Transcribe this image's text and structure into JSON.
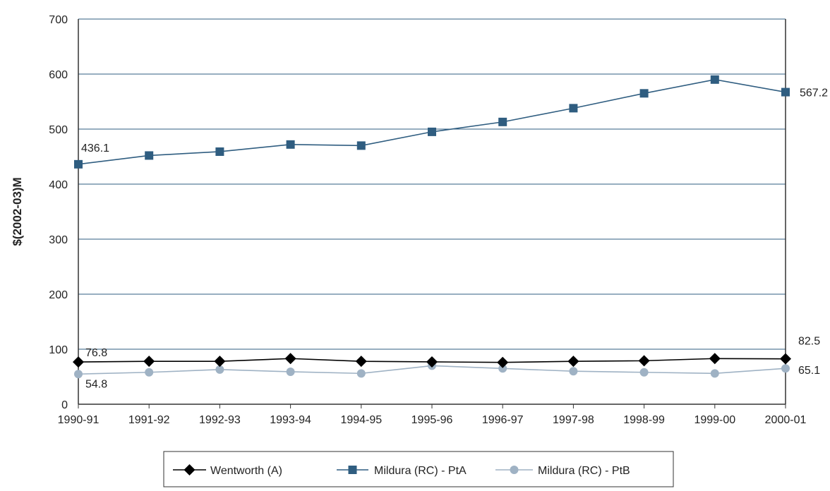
{
  "chart_data": {
    "type": "line",
    "title": "",
    "xlabel": "",
    "ylabel": "$(2002-03)M",
    "ylim": [
      0,
      700
    ],
    "yticks": [
      0,
      100,
      200,
      300,
      400,
      500,
      600,
      700
    ],
    "grid": "horizontal",
    "legend_position": "bottom",
    "categories": [
      "1990-91",
      "1991-92",
      "1992-93",
      "1993-94",
      "1994-95",
      "1995-96",
      "1996-97",
      "1997-98",
      "1998-99",
      "1999-00",
      "2000-01"
    ],
    "series": [
      {
        "name": "Wentworth (A)",
        "marker": "diamond",
        "color": "#000000",
        "values": [
          76.8,
          78,
          78,
          83,
          78,
          77,
          76,
          78,
          79,
          83,
          82.5
        ]
      },
      {
        "name": "Mildura (RC) - PtA",
        "marker": "square",
        "color": "#2f5d80",
        "values": [
          436.1,
          452,
          459,
          472,
          470,
          495,
          513,
          538,
          565,
          590,
          567.2
        ]
      },
      {
        "name": "Mildura (RC) - PtB",
        "marker": "circle",
        "color": "#9fb2c4",
        "values": [
          54.8,
          58,
          63,
          59,
          56,
          70,
          65,
          60,
          58,
          56,
          65.1
        ]
      }
    ],
    "annotations": [
      {
        "series": 1,
        "index": 0,
        "text": "436.1"
      },
      {
        "series": 1,
        "index": 10,
        "text": "567.2"
      },
      {
        "series": 0,
        "index": 0,
        "text": "76.8"
      },
      {
        "series": 0,
        "index": 10,
        "text": "82.5"
      },
      {
        "series": 2,
        "index": 0,
        "text": "54.8"
      },
      {
        "series": 2,
        "index": 10,
        "text": "65.1"
      }
    ],
    "gridline_color": "#2f5d80"
  }
}
